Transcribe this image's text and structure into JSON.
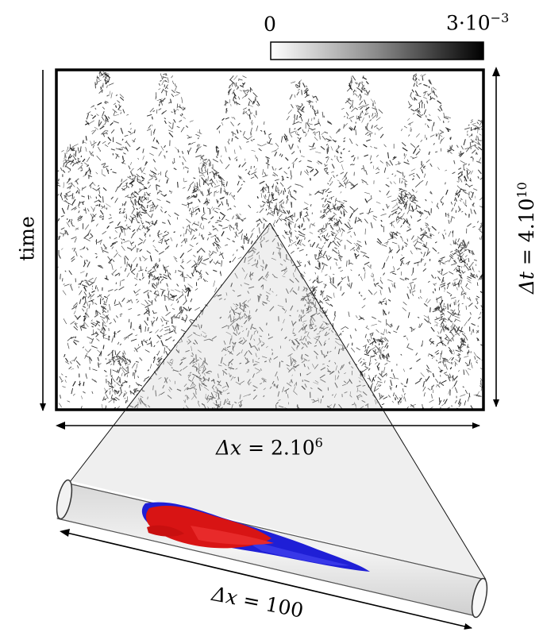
{
  "colorbar": {
    "min_label": "0",
    "max_label_mantissa": "3·10",
    "max_label_exponent": "−3",
    "colors": [
      "#ffffff",
      "#000000"
    ]
  },
  "axes": {
    "time_label": "time",
    "dt_label_sym": "Δt",
    "dt_label_val": " = 4.10",
    "dt_label_exp": "10",
    "dx_top_sym": "Δx",
    "dx_top_val": " = 2.10",
    "dx_top_exp": "6",
    "dx_bottom_sym": "Δx",
    "dx_bottom_val": " = 100"
  },
  "structures": {
    "colors": {
      "positive": "#e01010",
      "negative": "#1a1ad8"
    }
  }
}
